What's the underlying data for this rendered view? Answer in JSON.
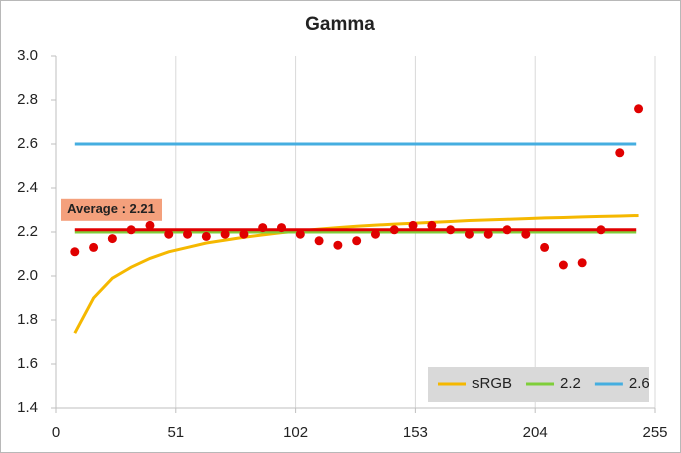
{
  "chart_data": {
    "type": "scatter",
    "title": "Gamma",
    "xlim": [
      0,
      255
    ],
    "xticks": [
      0,
      51,
      102,
      153,
      204,
      255
    ],
    "ylim": [
      1.4,
      3.0
    ],
    "yticks": [
      1.4,
      1.6,
      1.8,
      {
        "value": 2,
        "label": "2.0"
      },
      2.2,
      2.4,
      2.6,
      2.8,
      {
        "value": 3,
        "label": "3.0"
      }
    ],
    "grid": "x",
    "legend": "lower right",
    "series": [
      {
        "name": "sRGB",
        "color": "#f5b800",
        "x": [
          8,
          16,
          24,
          32,
          40,
          48,
          56,
          64,
          72,
          80,
          88,
          96,
          104,
          112,
          120,
          128,
          136,
          144,
          152,
          160,
          168,
          176,
          184,
          192,
          200,
          208,
          216,
          224,
          232,
          240,
          248
        ],
        "values": [
          1.74,
          1.9,
          1.99,
          2.04,
          2.08,
          2.11,
          2.13,
          2.15,
          2.163,
          2.176,
          2.187,
          2.197,
          2.205,
          2.213,
          2.22,
          2.226,
          2.231,
          2.236,
          2.24,
          2.244,
          2.248,
          2.252,
          2.255,
          2.258,
          2.261,
          2.264,
          2.266,
          2.269,
          2.271,
          2.273,
          2.275
        ]
      },
      {
        "name": "2.2",
        "color": "#7fce3a",
        "x": [
          8,
          247
        ],
        "values": [
          2.2,
          2.2
        ]
      },
      {
        "name": "2.6",
        "color": "#45aee0",
        "x": [
          8,
          247
        ],
        "values": [
          2.6,
          2.6
        ]
      }
    ],
    "average": {
      "text": "Average : 2.21",
      "value": 2.21,
      "x": [
        8,
        247
      ],
      "color": "#e00000",
      "label_color": "#f4a07c"
    },
    "points": {
      "color": "#e00000",
      "x": [
        8,
        16,
        24,
        32,
        40,
        48,
        56,
        64,
        72,
        80,
        88,
        96,
        104,
        112,
        120,
        128,
        136,
        144,
        152,
        160,
        168,
        176,
        184,
        192,
        200,
        208,
        216,
        224,
        232,
        240,
        248
      ],
      "values": [
        2.11,
        2.13,
        2.17,
        2.21,
        2.23,
        2.19,
        2.19,
        2.18,
        2.19,
        2.19,
        2.22,
        2.22,
        2.19,
        2.16,
        2.14,
        2.16,
        2.19,
        2.21,
        2.23,
        2.23,
        2.21,
        2.19,
        2.19,
        2.21,
        2.19,
        2.13,
        2.05,
        2.06,
        2.21,
        2.56,
        2.76
      ]
    }
  }
}
